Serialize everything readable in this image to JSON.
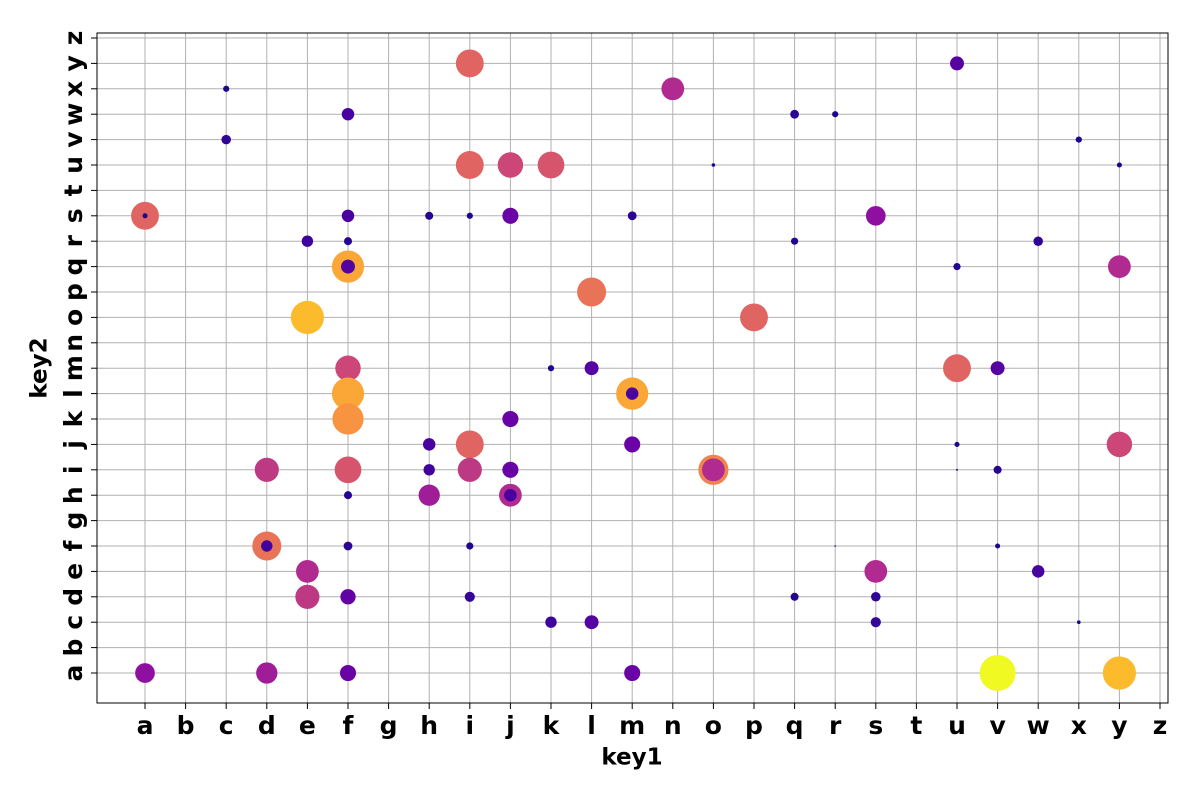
{
  "chart_data": {
    "type": "scatter",
    "x_label": "key1",
    "y_label": "key2",
    "x_categories": [
      "a",
      "b",
      "c",
      "d",
      "e",
      "f",
      "g",
      "h",
      "i",
      "j",
      "k",
      "l",
      "m",
      "n",
      "o",
      "p",
      "q",
      "r",
      "s",
      "t",
      "u",
      "v",
      "w",
      "x",
      "y",
      "z"
    ],
    "y_categories": [
      "a",
      "b",
      "c",
      "d",
      "e",
      "f",
      "g",
      "h",
      "i",
      "j",
      "k",
      "l",
      "m",
      "n",
      "o",
      "p",
      "q",
      "r",
      "s",
      "t",
      "u",
      "v",
      "w",
      "x",
      "y",
      "z"
    ],
    "colormap": "plasma",
    "grid": true,
    "x": [
      "i",
      "u",
      "c",
      "n",
      "f",
      "q",
      "r",
      "c",
      "x",
      "i",
      "j",
      "k",
      "o",
      "y",
      "a",
      "a",
      "f",
      "h",
      "i",
      "j",
      "m",
      "s",
      "e",
      "f",
      "q",
      "w",
      "f",
      "f",
      "u",
      "y",
      "l",
      "e",
      "p",
      "f",
      "k",
      "l",
      "u",
      "v",
      "f",
      "m",
      "m",
      "f",
      "j",
      "h",
      "i",
      "m",
      "u",
      "y",
      "d",
      "f",
      "h",
      "i",
      "j",
      "o",
      "o",
      "u",
      "v",
      "f",
      "h",
      "j",
      "j",
      "d",
      "d",
      "f",
      "i",
      "r",
      "v",
      "e",
      "s",
      "w",
      "e",
      "f",
      "i",
      "q",
      "s",
      "k",
      "l",
      "s",
      "x",
      "a",
      "d",
      "f",
      "m",
      "v",
      "y"
    ],
    "y": [
      "y",
      "y",
      "x",
      "x",
      "w",
      "w",
      "w",
      "v",
      "v",
      "u",
      "u",
      "u",
      "u",
      "u",
      "s",
      "s",
      "s",
      "s",
      "s",
      "s",
      "s",
      "s",
      "r",
      "r",
      "r",
      "r",
      "q",
      "q",
      "q",
      "q",
      "p",
      "o",
      "o",
      "m",
      "m",
      "m",
      "m",
      "m",
      "l",
      "l",
      "l",
      "k",
      "k",
      "j",
      "j",
      "j",
      "j",
      "j",
      "i",
      "i",
      "i",
      "i",
      "i",
      "i",
      "i",
      "i",
      "i",
      "h",
      "h",
      "h",
      "h",
      "f",
      "f",
      "f",
      "f",
      "f",
      "f",
      "e",
      "e",
      "e",
      "d",
      "d",
      "d",
      "d",
      "d",
      "c",
      "c",
      "c",
      "c",
      "a",
      "a",
      "a",
      "a",
      "a",
      "a"
    ],
    "values": [
      0.6,
      0.15,
      0.03,
      0.4,
      0.12,
      0.06,
      0.03,
      0.07,
      0.03,
      0.6,
      0.5,
      0.55,
      0.01,
      0.02,
      0.6,
      0.02,
      0.12,
      0.05,
      0.03,
      0.2,
      0.06,
      0.3,
      0.1,
      0.05,
      0.04,
      0.07,
      0.8,
      0.15,
      0.04,
      0.4,
      0.65,
      0.85,
      0.6,
      0.5,
      0.03,
      0.15,
      0.6,
      0.15,
      0.8,
      0.8,
      0.12,
      0.75,
      0.2,
      0.12,
      0.6,
      0.2,
      0.02,
      0.5,
      0.45,
      0.55,
      0.1,
      0.45,
      0.2,
      0.7,
      0.4,
      0.003,
      0.05,
      0.05,
      0.35,
      0.4,
      0.12,
      0.65,
      0.1,
      0.06,
      0.04,
      0.002,
      0.02,
      0.4,
      0.4,
      0.12,
      0.45,
      0.18,
      0.08,
      0.05,
      0.07,
      0.1,
      0.15,
      0.08,
      0.01,
      0.3,
      0.35,
      0.2,
      0.2,
      1.0,
      0.85
    ]
  }
}
